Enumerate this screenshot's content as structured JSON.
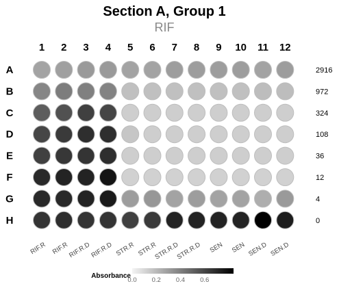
{
  "chart_data": {
    "type": "heatmap",
    "title": "Section A, Group 1",
    "subtitle": "RIF",
    "columns": [
      "1",
      "2",
      "3",
      "4",
      "5",
      "6",
      "7",
      "8",
      "9",
      "10",
      "11",
      "12"
    ],
    "rows": [
      "A",
      "B",
      "C",
      "D",
      "E",
      "F",
      "G",
      "H"
    ],
    "row_dilutions": [
      "2916",
      "972",
      "324",
      "108",
      "36",
      "12",
      "4",
      "0"
    ],
    "column_conditions": [
      "RIF.R",
      "RIF.R",
      "RIF.R.D",
      "RIF.R.D",
      "STR.R",
      "STR.R",
      "STR.R.D",
      "STR.R.D",
      "SEN",
      "SEN",
      "SEN.D",
      "SEN.D"
    ],
    "values": [
      [
        0.28,
        0.29,
        0.31,
        0.31,
        0.28,
        0.28,
        0.3,
        0.3,
        0.3,
        0.3,
        0.28,
        0.3
      ],
      [
        0.38,
        0.41,
        0.4,
        0.39,
        0.18,
        0.18,
        0.18,
        0.18,
        0.18,
        0.18,
        0.19,
        0.19
      ],
      [
        0.52,
        0.56,
        0.62,
        0.6,
        0.13,
        0.13,
        0.13,
        0.13,
        0.13,
        0.13,
        0.13,
        0.13
      ],
      [
        0.6,
        0.64,
        0.68,
        0.68,
        0.16,
        0.13,
        0.13,
        0.13,
        0.13,
        0.13,
        0.13,
        0.13
      ],
      [
        0.62,
        0.65,
        0.66,
        0.68,
        0.13,
        0.13,
        0.13,
        0.13,
        0.13,
        0.13,
        0.13,
        0.13
      ],
      [
        0.7,
        0.72,
        0.72,
        0.77,
        0.12,
        0.12,
        0.12,
        0.12,
        0.12,
        0.12,
        0.12,
        0.12
      ],
      [
        0.7,
        0.7,
        0.72,
        0.75,
        0.3,
        0.32,
        0.28,
        0.3,
        0.28,
        0.28,
        0.24,
        0.31
      ],
      [
        0.66,
        0.68,
        0.66,
        0.66,
        0.62,
        0.64,
        0.72,
        0.72,
        0.72,
        0.72,
        0.84,
        0.74
      ]
    ],
    "legend": {
      "title": "Absorbance",
      "ticks": [
        "0.0",
        "0.2",
        "0.4",
        "0.6"
      ],
      "tick_values": [
        0.0,
        0.2,
        0.4,
        0.6
      ],
      "range": [
        0.0,
        0.84
      ]
    },
    "colors": {
      "low": "#f4f4f4",
      "high": "#000000",
      "stroke": "#bdbdbd",
      "subtitle": "#888888"
    }
  }
}
